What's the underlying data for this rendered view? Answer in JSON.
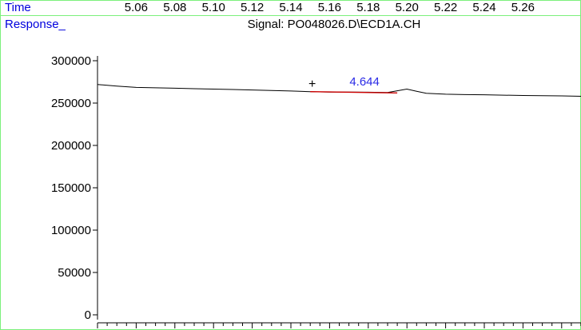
{
  "time_axis": {
    "label": "Time",
    "ticks": [
      "5.06",
      "5.08",
      "5.10",
      "5.12",
      "5.14",
      "5.16",
      "5.18",
      "5.20",
      "5.22",
      "5.24",
      "5.26"
    ]
  },
  "response_label": "Response_",
  "chart_data": {
    "type": "line",
    "title": "Signal: PO048026.D\\ECD1A.CH",
    "xlabel": "Time",
    "ylabel": "Response_",
    "xlim": [
      5.04,
      5.29
    ],
    "ylim": [
      0,
      300000
    ],
    "y_ticks": [
      {
        "value": 300000,
        "label": "300000"
      },
      {
        "value": 250000,
        "label": "250000"
      },
      {
        "value": 200000,
        "label": "200000"
      },
      {
        "value": 150000,
        "label": "150000"
      },
      {
        "value": 100000,
        "label": "100000"
      },
      {
        "value": 50000,
        "label": "50000"
      },
      {
        "value": 0,
        "label": "0"
      }
    ],
    "series": [
      {
        "color": "#000000",
        "x": [
          5.04,
          5.05,
          5.06,
          5.07,
          5.08,
          5.09,
          5.1,
          5.11,
          5.12,
          5.13,
          5.14,
          5.15,
          5.16,
          5.17,
          5.18,
          5.19,
          5.195,
          5.2,
          5.205,
          5.21,
          5.22,
          5.23,
          5.24,
          5.25,
          5.26,
          5.27,
          5.28,
          5.29
        ],
        "y": [
          272000,
          270000,
          268500,
          268000,
          267500,
          267000,
          266500,
          266000,
          265500,
          264800,
          264200,
          263500,
          263000,
          263000,
          262800,
          262500,
          264500,
          266500,
          264000,
          261500,
          260500,
          260000,
          259800,
          259300,
          259000,
          258800,
          258500,
          258000
        ]
      }
    ],
    "integration_baseline": {
      "color": "#cc0000",
      "x": [
        5.15,
        5.195
      ],
      "y": [
        263500,
        262000
      ]
    },
    "peak": {
      "label": "4.644",
      "x": 5.167,
      "y": 263000,
      "marker": "+",
      "marker_x": 5.151,
      "label_color": "#2a2ae6"
    },
    "grid": false
  }
}
